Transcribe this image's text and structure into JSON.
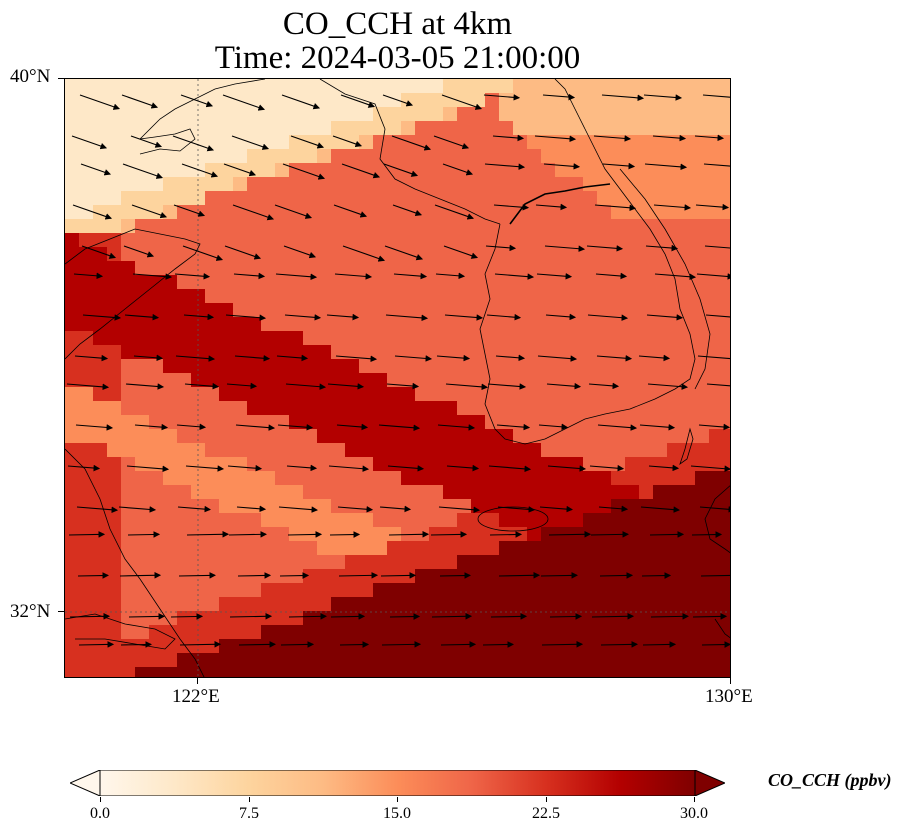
{
  "title": {
    "line1": "CO_CCH at 4km",
    "line2": "Time: 2024-03-05 21:00:00"
  },
  "map": {
    "lat_ticks": [
      "40°N",
      "32°N"
    ],
    "lon_ticks": [
      "122°E",
      "130°E"
    ],
    "extent": {
      "lon_min": 120,
      "lon_max": 130,
      "lat_min": 31,
      "lat_max": 40
    },
    "gridlines": "dotted",
    "field_name": "CO_CCH",
    "vectors": "wind arrows pointing mostly east to east-southeast"
  },
  "colorbar": {
    "label": "CO_CCH (ppbv)",
    "ticks": [
      "0.0",
      "7.5",
      "15.0",
      "22.5",
      "30.0"
    ],
    "min": 0,
    "max": 30,
    "extend": "both",
    "colormap": "OrRd",
    "colors": [
      "#fff7ec",
      "#fee8c8",
      "#fdd49e",
      "#fdbb84",
      "#fc8d59",
      "#ef6548",
      "#d7301f",
      "#b30000",
      "#7f0000"
    ]
  }
}
